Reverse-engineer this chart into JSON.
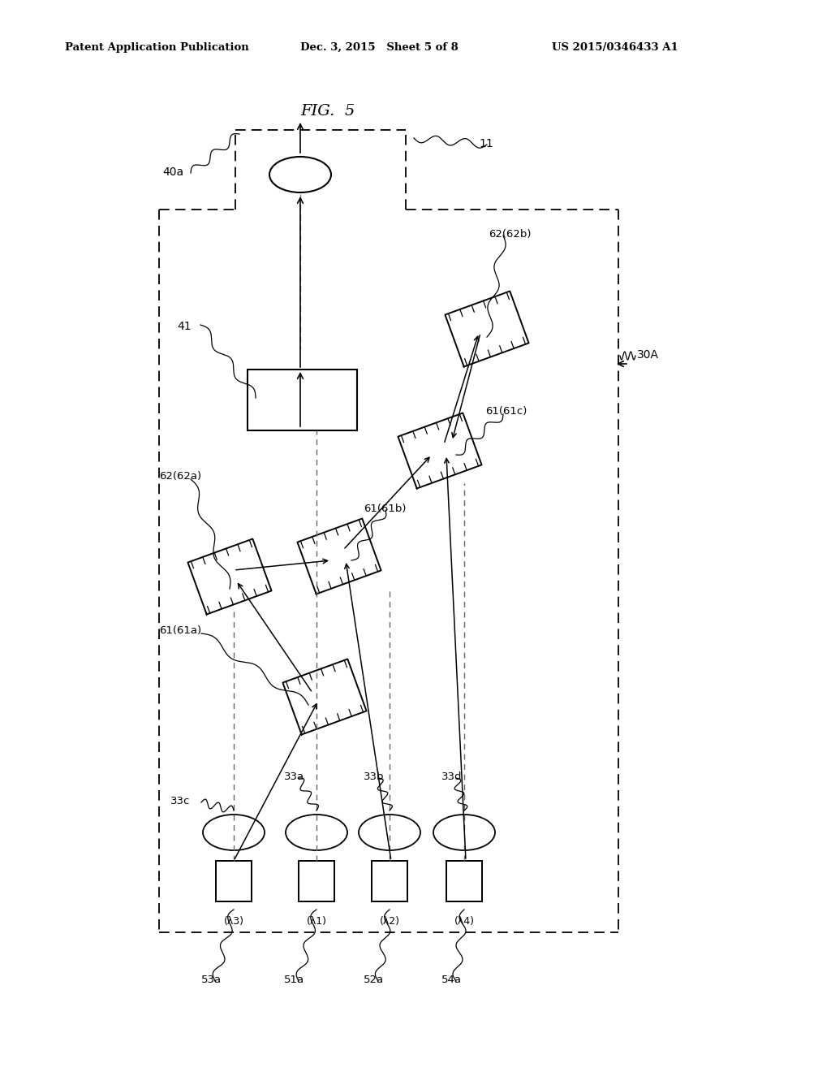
{
  "title": "FIG.  5",
  "header_left": "Patent Application Publication",
  "header_mid": "Dec. 3, 2015   Sheet 5 of 8",
  "header_right": "US 2015/0346433 A1",
  "bg_color": "#ffffff",
  "line_color": "#000000",
  "label_11": "11",
  "label_30A": "30A",
  "label_40a": "40a",
  "label_41": "41",
  "label_62_62b": "62(62b)",
  "label_62_62a": "62(62a)",
  "label_61_61a": "61(61a)",
  "label_61_61b": "61(61b)",
  "label_61_61c": "61(61c)",
  "label_33a": "33a",
  "label_33b": "33b",
  "label_33c": "33c",
  "label_33d": "33d",
  "label_51a": "51a",
  "label_52a": "52a",
  "label_53a": "53a",
  "label_54a": "54a",
  "label_lambda1": "(λ1)",
  "label_lambda2": "(λ2)",
  "label_lambda3": "(λ3)",
  "label_lambda4": "(λ4)"
}
